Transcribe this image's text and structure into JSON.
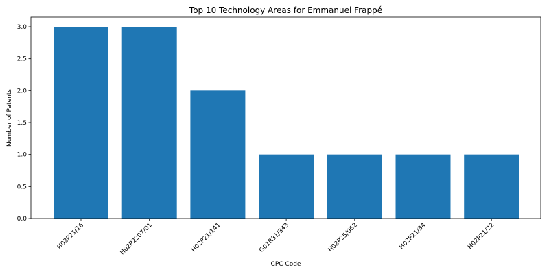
{
  "chart_data": {
    "type": "bar",
    "title": "Top 10 Technology Areas for Emmanuel Frappé",
    "xlabel": "CPC Code",
    "ylabel": "Number of Patents",
    "categories": [
      "H02P21/16",
      "H02P2207/01",
      "H02P21/141",
      "G01R31/343",
      "H02P25/062",
      "H02P21/34",
      "H02P21/22"
    ],
    "values": [
      3,
      3,
      2,
      1,
      1,
      1,
      1
    ],
    "ylim": [
      0,
      3.15
    ],
    "yticks": [
      "0.0",
      "0.5",
      "1.0",
      "1.5",
      "2.0",
      "2.5",
      "3.0"
    ],
    "grid": false,
    "bar_color": "#1f77b4"
  }
}
